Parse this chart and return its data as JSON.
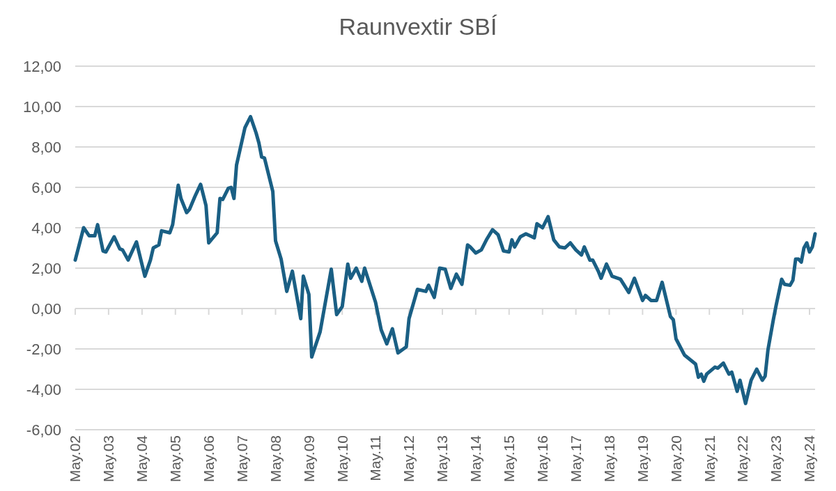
{
  "chart_data": {
    "type": "line",
    "title": "Raunvextir SBÍ",
    "x": [
      "2002-05",
      "2002-08",
      "2002-10",
      "2002-12",
      "2003-01",
      "2003-03",
      "2003-04",
      "2003-07",
      "2003-09",
      "2003-10",
      "2003-12",
      "2004-03",
      "2004-06",
      "2004-08",
      "2004-09",
      "2004-11",
      "2004-12",
      "2005-03",
      "2005-04",
      "2005-06",
      "2005-07",
      "2005-09",
      "2005-10",
      "2005-12",
      "2006-02",
      "2006-04",
      "2006-05",
      "2006-08",
      "2006-09",
      "2006-10",
      "2006-12",
      "2007-01",
      "2007-02",
      "2007-03",
      "2007-06",
      "2007-08",
      "2007-10",
      "2007-11",
      "2007-12",
      "2008-01",
      "2008-04",
      "2008-05",
      "2008-07",
      "2008-09",
      "2008-11",
      "2009-02",
      "2009-03",
      "2009-05",
      "2009-06",
      "2009-09",
      "2010-01",
      "2010-03",
      "2010-05",
      "2010-07",
      "2010-08",
      "2010-10",
      "2010-12",
      "2011-01",
      "2011-05",
      "2011-07",
      "2011-09",
      "2011-11",
      "2012-01",
      "2012-04",
      "2012-05",
      "2012-08",
      "2012-11",
      "2012-12",
      "2013-02",
      "2013-04",
      "2013-06",
      "2013-08",
      "2013-10",
      "2013-12",
      "2014-02",
      "2014-03",
      "2014-05",
      "2014-07",
      "2014-09",
      "2014-11",
      "2015-01",
      "2015-03",
      "2015-05",
      "2015-06",
      "2015-07",
      "2015-09",
      "2015-11",
      "2016-02",
      "2016-03",
      "2016-05",
      "2016-07",
      "2016-09",
      "2016-11",
      "2017-01",
      "2017-03",
      "2017-05",
      "2017-07",
      "2017-08",
      "2017-10",
      "2017-11",
      "2018-01",
      "2018-02",
      "2018-04",
      "2018-06",
      "2018-09",
      "2018-12",
      "2019-02",
      "2019-05",
      "2019-06",
      "2019-08",
      "2019-10",
      "2019-12",
      "2020-03",
      "2020-04",
      "2020-05",
      "2020-08",
      "2020-12",
      "2021-01",
      "2021-02",
      "2021-03",
      "2021-04",
      "2021-07",
      "2021-08",
      "2021-10",
      "2021-12",
      "2022-01",
      "2022-03",
      "2022-04",
      "2022-06",
      "2022-08",
      "2022-10",
      "2022-12",
      "2023-01",
      "2023-02",
      "2023-04",
      "2023-05",
      "2023-07",
      "2023-08",
      "2023-10",
      "2023-11",
      "2023-12",
      "2024-01",
      "2024-02",
      "2024-03",
      "2024-04",
      "2024-05",
      "2024-06",
      "2024-07"
    ],
    "series": [
      {
        "color": "#1a5f84",
        "values": [
          2.4,
          4.0,
          3.6,
          3.6,
          4.15,
          2.85,
          2.8,
          3.55,
          2.95,
          2.9,
          2.4,
          3.3,
          1.6,
          2.4,
          3.0,
          3.15,
          3.85,
          3.75,
          4.15,
          6.1,
          5.45,
          4.75,
          4.9,
          5.55,
          6.15,
          5.1,
          3.25,
          3.75,
          5.45,
          5.4,
          5.95,
          6.0,
          5.45,
          7.1,
          8.95,
          9.5,
          8.7,
          8.2,
          7.5,
          7.45,
          5.8,
          3.35,
          2.45,
          0.85,
          1.85,
          -0.5,
          1.6,
          0.7,
          -2.4,
          -1.15,
          1.95,
          -0.3,
          0.1,
          2.2,
          1.5,
          2.0,
          1.35,
          2.0,
          0.3,
          -1.05,
          -1.75,
          -1.0,
          -2.2,
          -1.9,
          -0.5,
          0.95,
          0.85,
          1.15,
          0.55,
          2.0,
          1.95,
          1.0,
          1.7,
          1.2,
          3.15,
          3.05,
          2.75,
          2.9,
          3.45,
          3.9,
          3.65,
          2.85,
          2.8,
          3.4,
          3.05,
          3.55,
          3.7,
          3.5,
          4.2,
          4.0,
          4.55,
          3.4,
          3.05,
          3.0,
          3.25,
          2.9,
          2.65,
          3.05,
          2.4,
          2.4,
          1.85,
          1.5,
          2.2,
          1.6,
          1.45,
          0.8,
          1.5,
          0.4,
          0.65,
          0.4,
          0.4,
          1.3,
          -0.4,
          -0.55,
          -1.5,
          -2.3,
          -2.75,
          -3.4,
          -3.25,
          -3.6,
          -3.25,
          -2.9,
          -2.95,
          -2.7,
          -3.25,
          -3.15,
          -4.1,
          -3.55,
          -4.7,
          -3.55,
          -3.0,
          -3.55,
          -3.35,
          -2.05,
          -0.55,
          0.15,
          1.45,
          1.2,
          1.15,
          1.4,
          2.45,
          2.45,
          2.3,
          3.0,
          3.25,
          2.8,
          3.05,
          3.7
        ]
      }
    ],
    "xlim": [
      "2002-05",
      "2024-07"
    ],
    "xticks": [
      {
        "value": "2002-05",
        "label": "May.02"
      },
      {
        "value": "2003-05",
        "label": "May.03"
      },
      {
        "value": "2004-05",
        "label": "May.04"
      },
      {
        "value": "2005-05",
        "label": "May.05"
      },
      {
        "value": "2006-05",
        "label": "May.06"
      },
      {
        "value": "2007-05",
        "label": "May.07"
      },
      {
        "value": "2008-05",
        "label": "May.08"
      },
      {
        "value": "2009-05",
        "label": "May.09"
      },
      {
        "value": "2010-05",
        "label": "May.10"
      },
      {
        "value": "2011-05",
        "label": "May.11"
      },
      {
        "value": "2012-05",
        "label": "May.12"
      },
      {
        "value": "2013-05",
        "label": "May.13"
      },
      {
        "value": "2014-05",
        "label": "May.14"
      },
      {
        "value": "2015-05",
        "label": "May.15"
      },
      {
        "value": "2016-05",
        "label": "May.16"
      },
      {
        "value": "2017-05",
        "label": "May.17"
      },
      {
        "value": "2018-05",
        "label": "May.18"
      },
      {
        "value": "2019-05",
        "label": "May.19"
      },
      {
        "value": "2020-05",
        "label": "May.20"
      },
      {
        "value": "2021-05",
        "label": "May.21"
      },
      {
        "value": "2022-05",
        "label": "May.22"
      },
      {
        "value": "2023-05",
        "label": "May.23"
      },
      {
        "value": "2024-05",
        "label": "May.24"
      }
    ],
    "ylim": [
      -6,
      12
    ],
    "yticks": [
      {
        "value": -6,
        "label": "-6,00"
      },
      {
        "value": -4,
        "label": "-4,00"
      },
      {
        "value": -2,
        "label": "-2,00"
      },
      {
        "value": 0,
        "label": "0,00"
      },
      {
        "value": 2,
        "label": "2,00"
      },
      {
        "value": 4,
        "label": "4,00"
      },
      {
        "value": 6,
        "label": "6,00"
      },
      {
        "value": 8,
        "label": "8,00"
      },
      {
        "value": 10,
        "label": "10,00"
      },
      {
        "value": 12,
        "label": "12,00"
      }
    ],
    "grid": "y",
    "marker": "none",
    "line_style": "solid"
  }
}
